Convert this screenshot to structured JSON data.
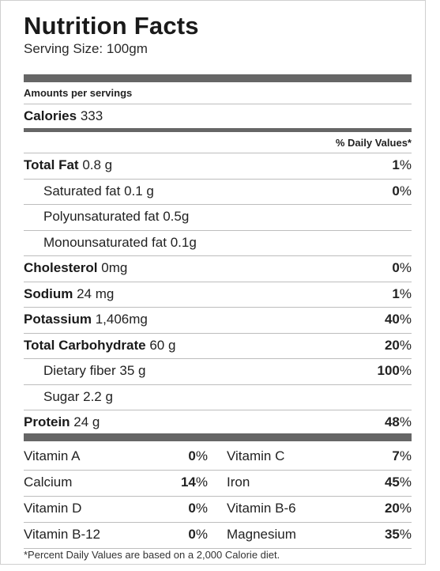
{
  "label": {
    "title": "Nutrition Facts",
    "serving_size": "Serving Size: 100gm",
    "amounts_per": "Amounts per servings",
    "calories_label": "Calories",
    "calories_value": "333",
    "daily_values_header": "% Daily Values*"
  },
  "nutrients": [
    {
      "name": "Total Fat",
      "amount": "0.8 g",
      "pct_num": "1",
      "bold": true
    },
    {
      "name": "Saturated fat",
      "amount": "0.1 g",
      "pct_num": "0",
      "bold": false
    },
    {
      "name": "Polyunsaturated fat",
      "amount": "0.5g",
      "pct_num": "",
      "bold": false
    },
    {
      "name": "Monounsaturated fat",
      "amount": "0.1g",
      "pct_num": "",
      "bold": false
    },
    {
      "name": "Cholesterol",
      "amount": "0mg",
      "pct_num": "0",
      "bold": true
    },
    {
      "name": "Sodium",
      "amount": "24 mg",
      "pct_num": "1",
      "bold": true
    },
    {
      "name": "Potassium",
      "amount": "1,406mg",
      "pct_num": "40",
      "bold": true
    },
    {
      "name": "Total Carbohydrate",
      "amount": "60 g",
      "pct_num": "20",
      "bold": true
    },
    {
      "name": "Dietary fiber",
      "amount": "35 g",
      "pct_num": "100",
      "bold": false
    },
    {
      "name": "Sugar",
      "amount": "2.2 g",
      "pct_num": "",
      "bold": false
    },
    {
      "name": "Protein",
      "amount": "24 g",
      "pct_num": "48",
      "bold": true
    }
  ],
  "pct_sign": "%",
  "vitamins": [
    {
      "left_name": "Vitamin A",
      "left_pct": "0",
      "right_name": "Vitamin C",
      "right_pct": "7"
    },
    {
      "left_name": "Calcium",
      "left_pct": "14",
      "right_name": "Iron",
      "right_pct": "45"
    },
    {
      "left_name": "Vitamin D",
      "left_pct": "0",
      "right_name": "Vitamin B-6",
      "right_pct": "20"
    },
    {
      "left_name": "Vitamin B-12",
      "left_pct": "0",
      "right_name": "Magnesium",
      "right_pct": "35"
    }
  ],
  "footnote": "*Percent Daily Values are based on a 2,000 Calorie diet."
}
